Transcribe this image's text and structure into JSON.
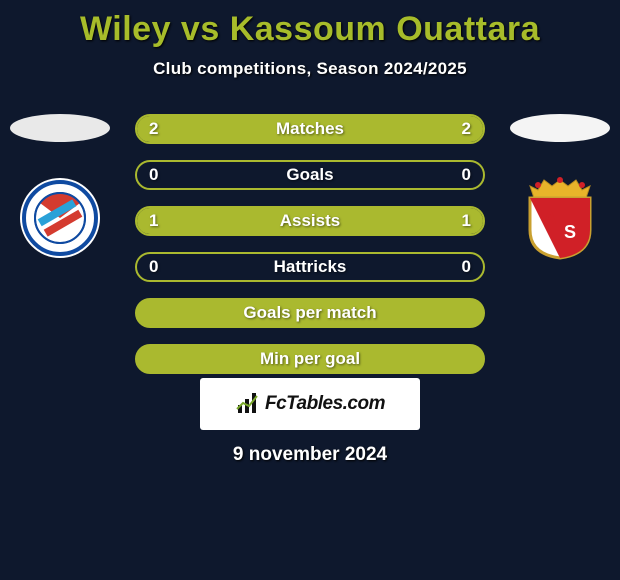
{
  "title": "Wiley vs Kassoum Ouattara",
  "subtitle": "Club competitions, Season 2024/2025",
  "date": "9 november 2024",
  "footer": {
    "logo_text": "FcTables.com"
  },
  "colors": {
    "accent": "#a7bc2a",
    "accent_border": "#aab92f",
    "left_fill": "#aab92f",
    "right_fill": "#0e182d",
    "left_text": "#ffffff",
    "right_text": "#ffffff",
    "center_text": "#ffffff",
    "background": "#0e182d"
  },
  "rows": [
    {
      "label": "Matches",
      "left": "2",
      "right": "2",
      "left_pct": 50,
      "right_pct": 50,
      "has_values": true
    },
    {
      "label": "Goals",
      "left": "0",
      "right": "0",
      "left_pct": 0,
      "right_pct": 0,
      "has_values": true
    },
    {
      "label": "Assists",
      "left": "1",
      "right": "1",
      "left_pct": 50,
      "right_pct": 50,
      "has_values": true
    },
    {
      "label": "Hattricks",
      "left": "0",
      "right": "0",
      "left_pct": 0,
      "right_pct": 0,
      "has_values": true
    },
    {
      "label": "Goals per match",
      "left": "",
      "right": "",
      "left_pct": 100,
      "right_pct": 0,
      "has_values": false
    },
    {
      "label": "Min per goal",
      "left": "",
      "right": "",
      "left_pct": 100,
      "right_pct": 0,
      "has_values": false
    }
  ],
  "crests": {
    "left": {
      "name": "strasbourg-crest",
      "outer": "#ffffff",
      "ring": "#0f4aa1",
      "inner_top": "#d43b2f",
      "inner_bottom": "#ffffff",
      "diag1": "#2aa1d8",
      "diag2": "#d43b2f"
    },
    "right": {
      "name": "monaco-crest",
      "left_half": "#ffffff",
      "right_half": "#d02027",
      "crown": "#e8b42a",
      "border": "#c9a030",
      "letters": "AS"
    }
  }
}
